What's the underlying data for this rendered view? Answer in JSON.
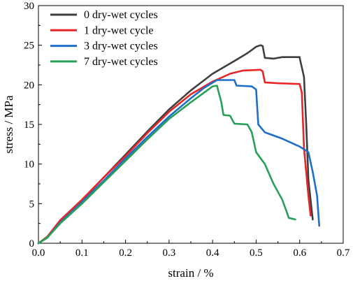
{
  "chart_data": {
    "type": "line",
    "title": "",
    "xlabel": "strain / %",
    "ylabel": "stress / MPa",
    "xlim": [
      0,
      0.7
    ],
    "ylim": [
      0,
      30
    ],
    "xticks": [
      "0.0",
      "0.1",
      "0.2",
      "0.3",
      "0.4",
      "0.5",
      "0.6",
      "0.7"
    ],
    "yticks": [
      "0",
      "5",
      "10",
      "15",
      "20",
      "25",
      "30"
    ],
    "grid": false,
    "legend_position": "top-left",
    "series": [
      {
        "name": "0 dry-wet cycles",
        "color": "#3f3f3f",
        "points": [
          [
            0,
            0
          ],
          [
            0.02,
            0.8
          ],
          [
            0.05,
            2.8
          ],
          [
            0.1,
            5.4
          ],
          [
            0.15,
            8.3
          ],
          [
            0.2,
            11.2
          ],
          [
            0.25,
            14.1
          ],
          [
            0.3,
            16.9
          ],
          [
            0.35,
            19.3
          ],
          [
            0.4,
            21.4
          ],
          [
            0.45,
            23.0
          ],
          [
            0.48,
            24.0
          ],
          [
            0.5,
            24.8
          ],
          [
            0.51,
            25.0
          ],
          [
            0.515,
            24.9
          ],
          [
            0.52,
            23.4
          ],
          [
            0.54,
            23.3
          ],
          [
            0.56,
            23.5
          ],
          [
            0.6,
            23.5
          ],
          [
            0.6,
            23.4
          ],
          [
            0.61,
            21.0
          ],
          [
            0.615,
            15.0
          ],
          [
            0.62,
            8.0
          ],
          [
            0.63,
            3.0
          ]
        ]
      },
      {
        "name": "1 dry-wet cycle",
        "color": "#e8262a",
        "points": [
          [
            0,
            0
          ],
          [
            0.02,
            0.8
          ],
          [
            0.05,
            2.9
          ],
          [
            0.1,
            5.5
          ],
          [
            0.15,
            8.3
          ],
          [
            0.2,
            11.0
          ],
          [
            0.25,
            13.9
          ],
          [
            0.3,
            16.6
          ],
          [
            0.35,
            18.8
          ],
          [
            0.4,
            20.4
          ],
          [
            0.44,
            21.4
          ],
          [
            0.47,
            21.8
          ],
          [
            0.51,
            21.9
          ],
          [
            0.515,
            21.7
          ],
          [
            0.52,
            20.3
          ],
          [
            0.55,
            20.2
          ],
          [
            0.6,
            20.1
          ],
          [
            0.605,
            19.0
          ],
          [
            0.61,
            12.0
          ],
          [
            0.62,
            6.0
          ],
          [
            0.625,
            3.5
          ]
        ]
      },
      {
        "name": "3 dry-wet cycles",
        "color": "#1f6fc9",
        "points": [
          [
            0,
            0
          ],
          [
            0.02,
            0.7
          ],
          [
            0.05,
            2.6
          ],
          [
            0.1,
            5.2
          ],
          [
            0.15,
            7.9
          ],
          [
            0.2,
            10.7
          ],
          [
            0.25,
            13.4
          ],
          [
            0.3,
            16.0
          ],
          [
            0.35,
            18.3
          ],
          [
            0.38,
            19.6
          ],
          [
            0.41,
            20.6
          ],
          [
            0.45,
            20.6
          ],
          [
            0.455,
            19.9
          ],
          [
            0.49,
            19.8
          ],
          [
            0.5,
            19.4
          ],
          [
            0.505,
            15.0
          ],
          [
            0.52,
            14.0
          ],
          [
            0.56,
            13.2
          ],
          [
            0.6,
            12.2
          ],
          [
            0.62,
            11.5
          ],
          [
            0.63,
            9.0
          ],
          [
            0.64,
            6.0
          ],
          [
            0.645,
            2.2
          ]
        ]
      },
      {
        "name": "7 dry-wet cycles",
        "color": "#27a058",
        "points": [
          [
            0,
            0
          ],
          [
            0.02,
            0.7
          ],
          [
            0.05,
            2.5
          ],
          [
            0.1,
            5.0
          ],
          [
            0.15,
            7.7
          ],
          [
            0.2,
            10.4
          ],
          [
            0.25,
            13.1
          ],
          [
            0.3,
            15.7
          ],
          [
            0.35,
            17.8
          ],
          [
            0.38,
            19.0
          ],
          [
            0.4,
            19.8
          ],
          [
            0.41,
            19.9
          ],
          [
            0.42,
            17.8
          ],
          [
            0.425,
            16.2
          ],
          [
            0.44,
            16.1
          ],
          [
            0.45,
            15.1
          ],
          [
            0.48,
            15.0
          ],
          [
            0.49,
            14.0
          ],
          [
            0.5,
            11.5
          ],
          [
            0.52,
            10.0
          ],
          [
            0.54,
            7.5
          ],
          [
            0.56,
            5.5
          ],
          [
            0.57,
            4.0
          ],
          [
            0.575,
            3.2
          ],
          [
            0.59,
            3.0
          ]
        ]
      }
    ]
  }
}
